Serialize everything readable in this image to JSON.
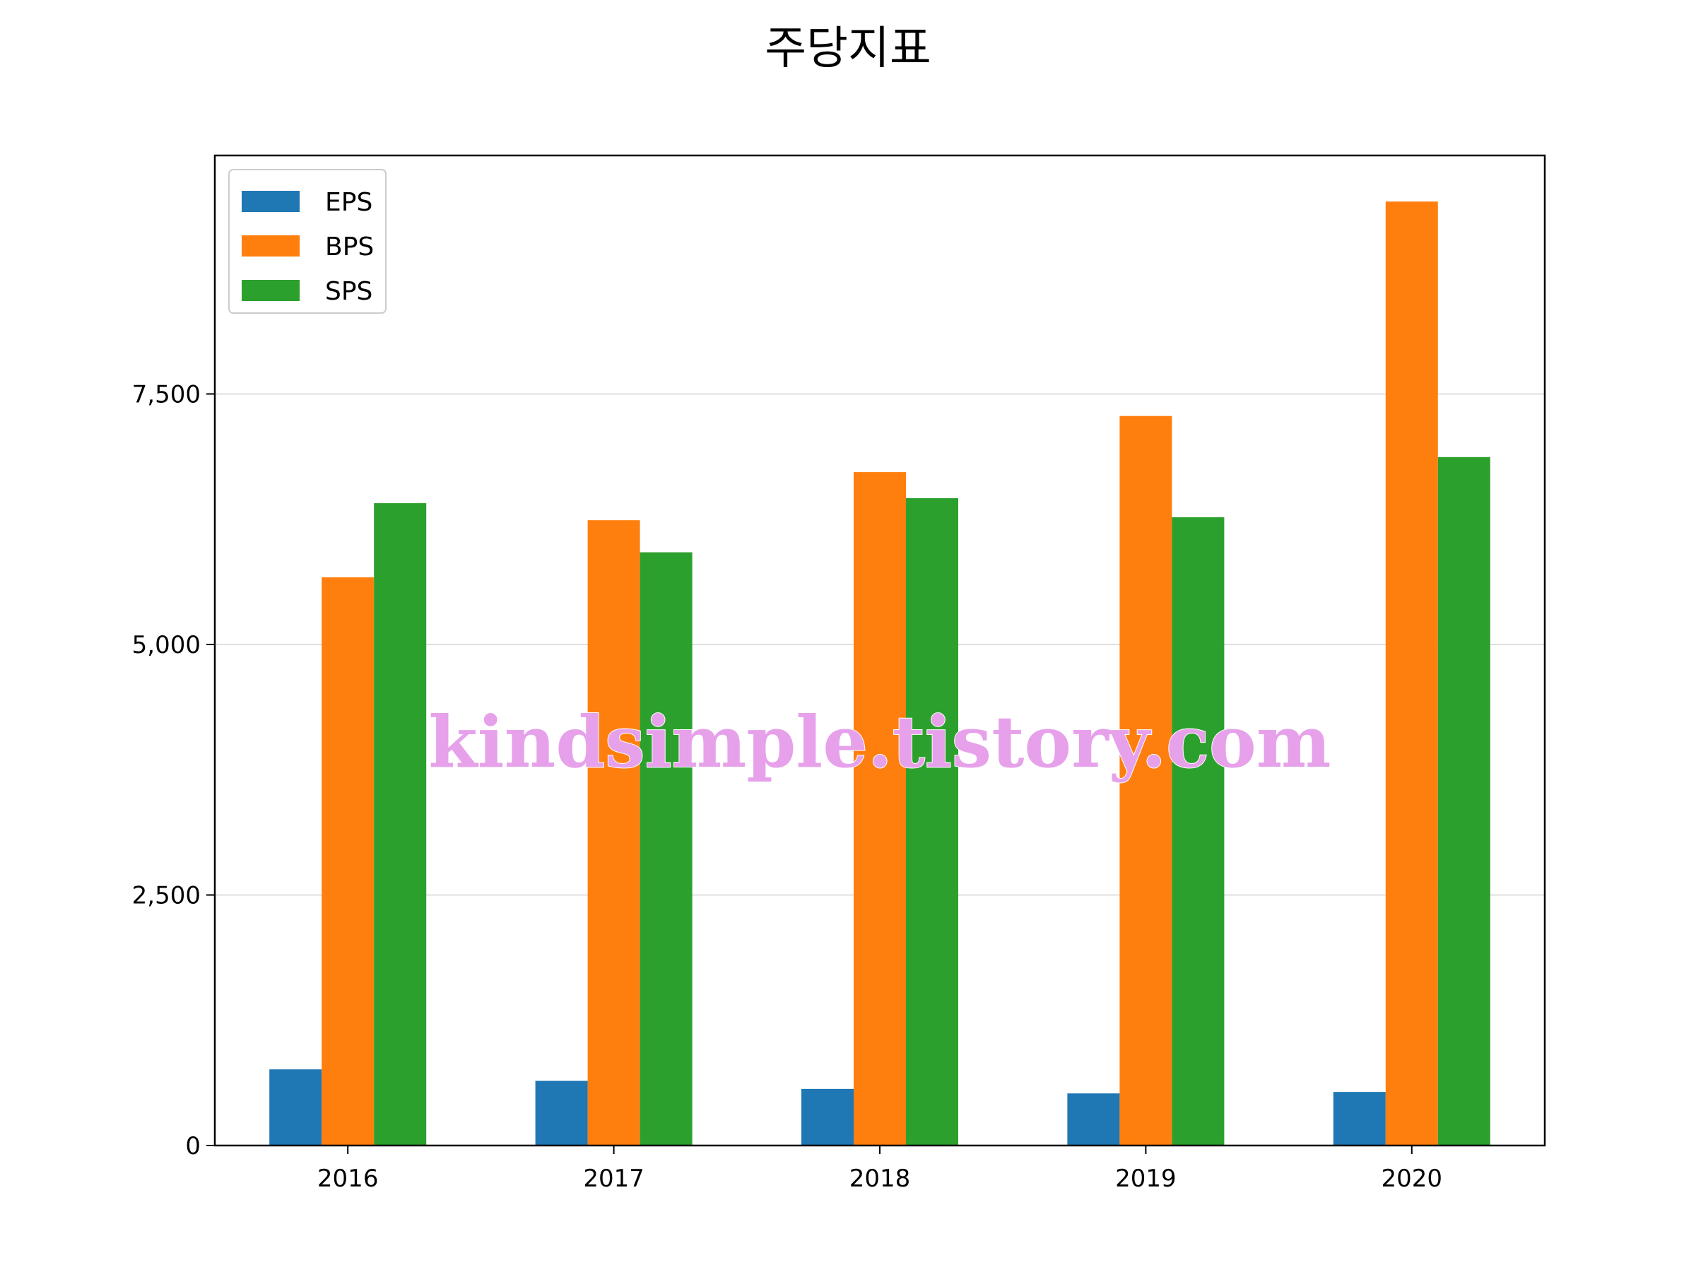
{
  "chart_data": {
    "type": "bar",
    "title": "주당지표",
    "categories": [
      "2016",
      "2017",
      "2018",
      "2019",
      "2020"
    ],
    "series": [
      {
        "name": "EPS",
        "color": "#1f77b4",
        "values": [
          760,
          645,
          565,
          520,
          535
        ]
      },
      {
        "name": "BPS",
        "color": "#ff7f0e",
        "values": [
          5670,
          6240,
          6720,
          7280,
          9420
        ]
      },
      {
        "name": "SPS",
        "color": "#2ca02c",
        "values": [
          6410,
          5920,
          6460,
          6270,
          6870
        ]
      }
    ],
    "ylim": [
      0,
      9880
    ],
    "yticks": [
      0,
      2500,
      5000,
      7500
    ],
    "ytick_labels": [
      "0",
      "2,500",
      "5,000",
      "7,500"
    ],
    "grid": "horizontal",
    "legend_position": "top-left"
  },
  "watermark": "kindsimple.tistory.com"
}
